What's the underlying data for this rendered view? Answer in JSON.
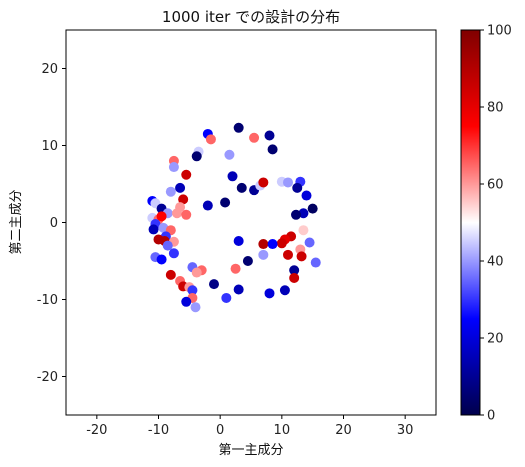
{
  "chart_data": {
    "type": "scatter",
    "title": "1000 iter での設計の分布",
    "xlabel": "第一主成分",
    "ylabel": "第二主成分",
    "xlim": [
      -25,
      35
    ],
    "ylim": [
      -25,
      25
    ],
    "xticks": [
      "-20",
      "-10",
      "0",
      "10",
      "20",
      "30"
    ],
    "yticks": [
      "-20",
      "-10",
      "0",
      "10",
      "20"
    ],
    "grid": false,
    "colormap": "seismic",
    "colorbar": {
      "min": 0,
      "max": 100,
      "ticks": [
        "0",
        "20",
        "40",
        "60",
        "80",
        "100"
      ]
    },
    "points": [
      {
        "x": -3.5,
        "y": 9.2,
        "c": 45
      },
      {
        "x": -2,
        "y": 11.5,
        "c": 25
      },
      {
        "x": 3,
        "y": 12.3,
        "c": 5
      },
      {
        "x": 5.5,
        "y": 11,
        "c": 65
      },
      {
        "x": 8,
        "y": 11.3,
        "c": 10
      },
      {
        "x": 8.5,
        "y": 9.5,
        "c": 5
      },
      {
        "x": 1.5,
        "y": 8.8,
        "c": 40
      },
      {
        "x": -7.5,
        "y": 8,
        "c": 65
      },
      {
        "x": -7.5,
        "y": 7.2,
        "c": 40
      },
      {
        "x": -5.5,
        "y": 6.2,
        "c": 85
      },
      {
        "x": -3.8,
        "y": 8.6,
        "c": 5
      },
      {
        "x": -1.5,
        "y": 10.8,
        "c": 65
      },
      {
        "x": 2,
        "y": 6,
        "c": 15
      },
      {
        "x": 3.5,
        "y": 4.5,
        "c": 5
      },
      {
        "x": 5.5,
        "y": 4.2,
        "c": 10
      },
      {
        "x": 6.5,
        "y": 4.8,
        "c": 45
      },
      {
        "x": 7,
        "y": 5.2,
        "c": 85
      },
      {
        "x": 10,
        "y": 5.3,
        "c": 45
      },
      {
        "x": 11,
        "y": 5.2,
        "c": 40
      },
      {
        "x": 13,
        "y": 5.3,
        "c": 30
      },
      {
        "x": 14,
        "y": 3.5,
        "c": 20
      },
      {
        "x": 12.5,
        "y": 4.5,
        "c": 10
      },
      {
        "x": 15,
        "y": 1.8,
        "c": 3
      },
      {
        "x": 13.5,
        "y": 1.2,
        "c": 15
      },
      {
        "x": 12.3,
        "y": 1,
        "c": 5
      },
      {
        "x": -8,
        "y": 4,
        "c": 40
      },
      {
        "x": -6.5,
        "y": 4.5,
        "c": 15
      },
      {
        "x": -6,
        "y": 3,
        "c": 85
      },
      {
        "x": -6.5,
        "y": 2,
        "c": 60
      },
      {
        "x": -2,
        "y": 2.2,
        "c": 15
      },
      {
        "x": 0.8,
        "y": 2.6,
        "c": 5
      },
      {
        "x": -11,
        "y": 2.8,
        "c": 25
      },
      {
        "x": -10.5,
        "y": 2.5,
        "c": 45
      },
      {
        "x": -9.5,
        "y": 1.8,
        "c": 10
      },
      {
        "x": -8.5,
        "y": 1.2,
        "c": 40
      },
      {
        "x": -7,
        "y": 1.2,
        "c": 60
      },
      {
        "x": -5.5,
        "y": 1,
        "c": 65
      },
      {
        "x": -11,
        "y": 0.6,
        "c": 45
      },
      {
        "x": -10,
        "y": 0.4,
        "c": 65
      },
      {
        "x": -9.5,
        "y": 0.8,
        "c": 75
      },
      {
        "x": -10.5,
        "y": -0.2,
        "c": 30
      },
      {
        "x": -10.8,
        "y": -0.9,
        "c": 15
      },
      {
        "x": -9.2,
        "y": -0.7,
        "c": 40
      },
      {
        "x": -8,
        "y": -1,
        "c": 65
      },
      {
        "x": -8.8,
        "y": -1.8,
        "c": 30
      },
      {
        "x": -10,
        "y": -2.2,
        "c": 90
      },
      {
        "x": -9,
        "y": -2.4,
        "c": 90
      },
      {
        "x": -7.5,
        "y": -2.5,
        "c": 60
      },
      {
        "x": -8.5,
        "y": -3,
        "c": 35
      },
      {
        "x": -7.5,
        "y": -4,
        "c": 30
      },
      {
        "x": -10.5,
        "y": -4.5,
        "c": 35
      },
      {
        "x": -9.5,
        "y": -4.8,
        "c": 25
      },
      {
        "x": 13.5,
        "y": -1,
        "c": 55
      },
      {
        "x": 11.5,
        "y": -1.8,
        "c": 85
      },
      {
        "x": 10.5,
        "y": -2.2,
        "c": 80
      },
      {
        "x": 10,
        "y": -2.7,
        "c": 85
      },
      {
        "x": 7,
        "y": -2.8,
        "c": 90
      },
      {
        "x": 8.5,
        "y": -2.8,
        "c": 25
      },
      {
        "x": 14.5,
        "y": -2.6,
        "c": 35
      },
      {
        "x": 13,
        "y": -3.5,
        "c": 60
      },
      {
        "x": 13.2,
        "y": -4.4,
        "c": 85
      },
      {
        "x": 11,
        "y": -4.2,
        "c": 85
      },
      {
        "x": 7,
        "y": -4.2,
        "c": 40
      },
      {
        "x": 3,
        "y": -2.4,
        "c": 20
      },
      {
        "x": 12,
        "y": -6.2,
        "c": 10
      },
      {
        "x": 15.5,
        "y": -5.2,
        "c": 35
      },
      {
        "x": 12,
        "y": -7.2,
        "c": 85
      },
      {
        "x": 4.5,
        "y": -5,
        "c": 5
      },
      {
        "x": 2.5,
        "y": -6,
        "c": 65
      },
      {
        "x": -4.5,
        "y": -5.8,
        "c": 35
      },
      {
        "x": -3,
        "y": -6.2,
        "c": 65
      },
      {
        "x": -3.8,
        "y": -6.5,
        "c": 60
      },
      {
        "x": -8,
        "y": -6.8,
        "c": 85
      },
      {
        "x": -6.5,
        "y": -7.6,
        "c": 65
      },
      {
        "x": -6,
        "y": -8.3,
        "c": 85
      },
      {
        "x": -5,
        "y": -8.4,
        "c": 60
      },
      {
        "x": -4.5,
        "y": -8.8,
        "c": 30
      },
      {
        "x": -1.5,
        "y": -8.1,
        "c": 50
      },
      {
        "x": -1,
        "y": -8,
        "c": 8
      },
      {
        "x": 3,
        "y": -8.7,
        "c": 15
      },
      {
        "x": 8,
        "y": -9.2,
        "c": 20
      },
      {
        "x": 10.5,
        "y": -8.8,
        "c": 15
      },
      {
        "x": -4.5,
        "y": -9.8,
        "c": 65
      },
      {
        "x": -5.5,
        "y": -10.3,
        "c": 20
      },
      {
        "x": -4,
        "y": -11,
        "c": 40
      },
      {
        "x": 1,
        "y": -9.8,
        "c": 30
      }
    ]
  }
}
